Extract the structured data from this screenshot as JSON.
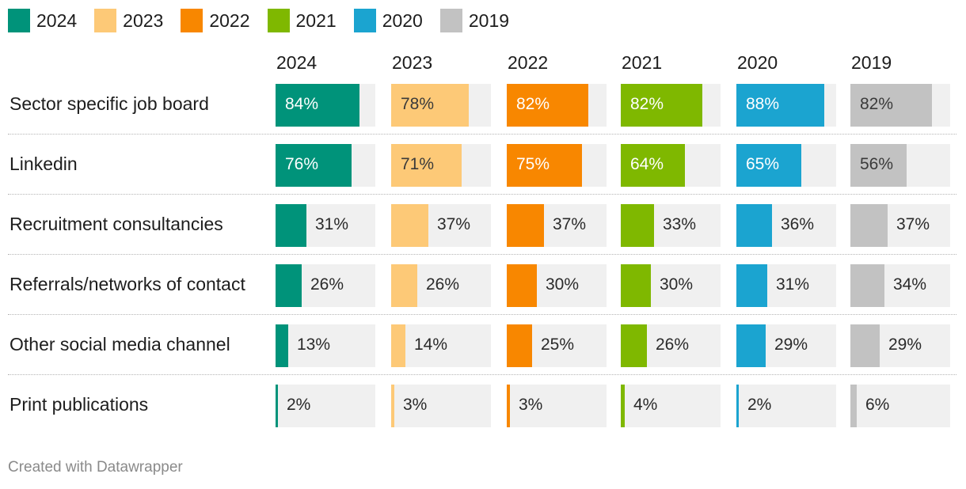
{
  "chart_data": {
    "type": "bar",
    "series": [
      {
        "name": "2024",
        "color": "#00937a",
        "values": [
          84,
          76,
          31,
          26,
          13,
          2
        ]
      },
      {
        "name": "2023",
        "color": "#fdc977",
        "values": [
          78,
          71,
          37,
          26,
          14,
          3
        ]
      },
      {
        "name": "2022",
        "color": "#f88700",
        "values": [
          82,
          75,
          37,
          30,
          25,
          3
        ]
      },
      {
        "name": "2021",
        "color": "#7fb800",
        "values": [
          82,
          64,
          33,
          30,
          26,
          4
        ]
      },
      {
        "name": "2020",
        "color": "#1ba4d0",
        "values": [
          88,
          65,
          36,
          31,
          29,
          2
        ]
      },
      {
        "name": "2019",
        "color": "#c2c2c2",
        "values": [
          82,
          56,
          37,
          34,
          29,
          6
        ]
      }
    ],
    "categories": [
      "Sector specific job board",
      "Linkedin",
      "Recruitment consultancies",
      "Referrals/networks of contact",
      "Other social media channel",
      "Print publications"
    ],
    "value_suffix": "%",
    "ylim": [
      0,
      100
    ],
    "legend": "top-left"
  },
  "footer": {
    "text": "Created with Datawrapper"
  }
}
